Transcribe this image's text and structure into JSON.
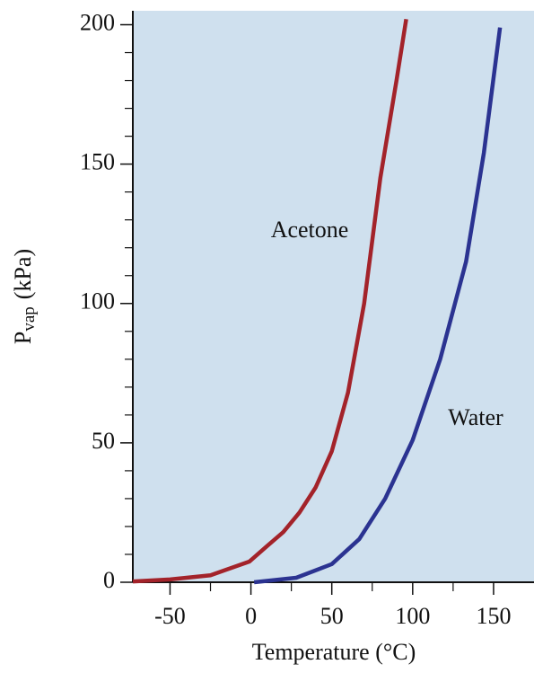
{
  "chart_data": {
    "type": "line",
    "xlabel": "Temperature (°C)",
    "ylabel": {
      "main": "P",
      "sub": "vap",
      "unit": "(kPa)"
    },
    "xlim": [
      -73,
      175
    ],
    "ylim": [
      0,
      205
    ],
    "xticks": [
      -50,
      0,
      50,
      100,
      150
    ],
    "xminor_ticks": [
      -25,
      25,
      75,
      125
    ],
    "yticks": [
      0,
      50,
      100,
      150,
      200
    ],
    "yminor_ticks": [
      10,
      20,
      30,
      40,
      60,
      70,
      80,
      90,
      110,
      120,
      130,
      140,
      160,
      170,
      180,
      190
    ],
    "background": "#cfe0ee",
    "series": [
      {
        "name": "Acetone",
        "color": "#a3232a",
        "x": [
          -73,
          -50,
          -25,
          -1,
          10,
          20,
          30,
          40,
          50,
          60,
          70,
          80,
          90,
          96
        ],
        "values": [
          0.3,
          1,
          2.5,
          7.4,
          13,
          18,
          25,
          34,
          47,
          68,
          100,
          145,
          180,
          202
        ]
      },
      {
        "name": "Water",
        "color": "#2b3391",
        "x": [
          2,
          28,
          50,
          67,
          83,
          100,
          117,
          133,
          144,
          154
        ],
        "values": [
          0,
          1.6,
          6.5,
          15.5,
          30,
          51,
          80,
          115,
          154,
          199
        ]
      }
    ]
  }
}
